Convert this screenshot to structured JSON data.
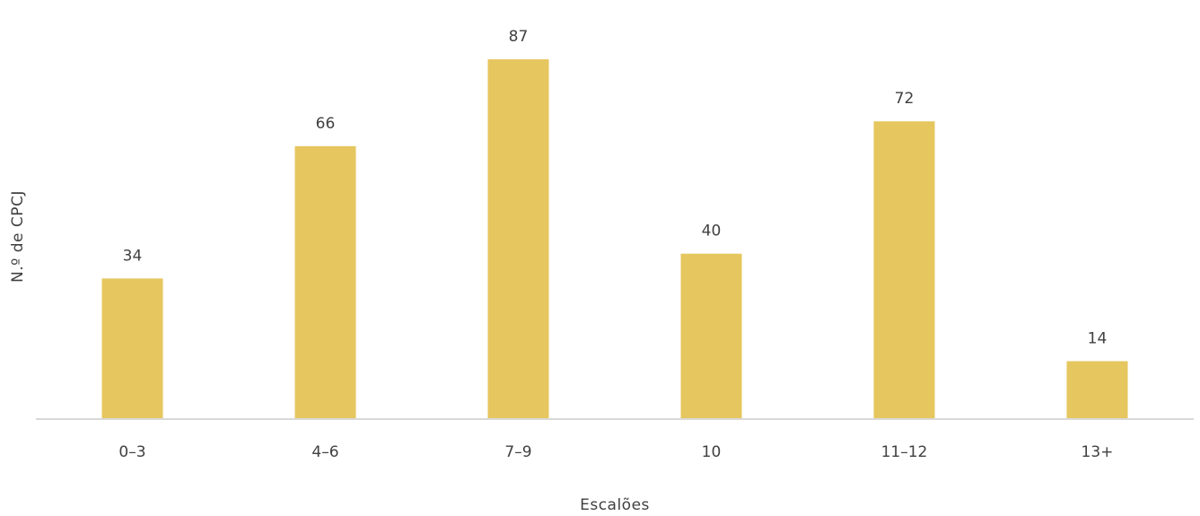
{
  "chart_data": {
    "type": "bar",
    "title": "",
    "xlabel": "Escalões",
    "ylabel": "N.º de CPCJ",
    "categories": [
      "0–3",
      "4–6",
      "7–9",
      "10",
      "11–12",
      "13+"
    ],
    "series": [
      {
        "values": [
          34,
          66,
          87,
          40,
          72,
          14
        ]
      }
    ],
    "data_labels": [
      "34",
      "66",
      "87",
      "40",
      "72",
      "14"
    ],
    "ylim": [
      0,
      97
    ],
    "grid": false,
    "legend": "none",
    "bar_color": "#E6C65F",
    "axis_color": "#D9D9D9"
  }
}
